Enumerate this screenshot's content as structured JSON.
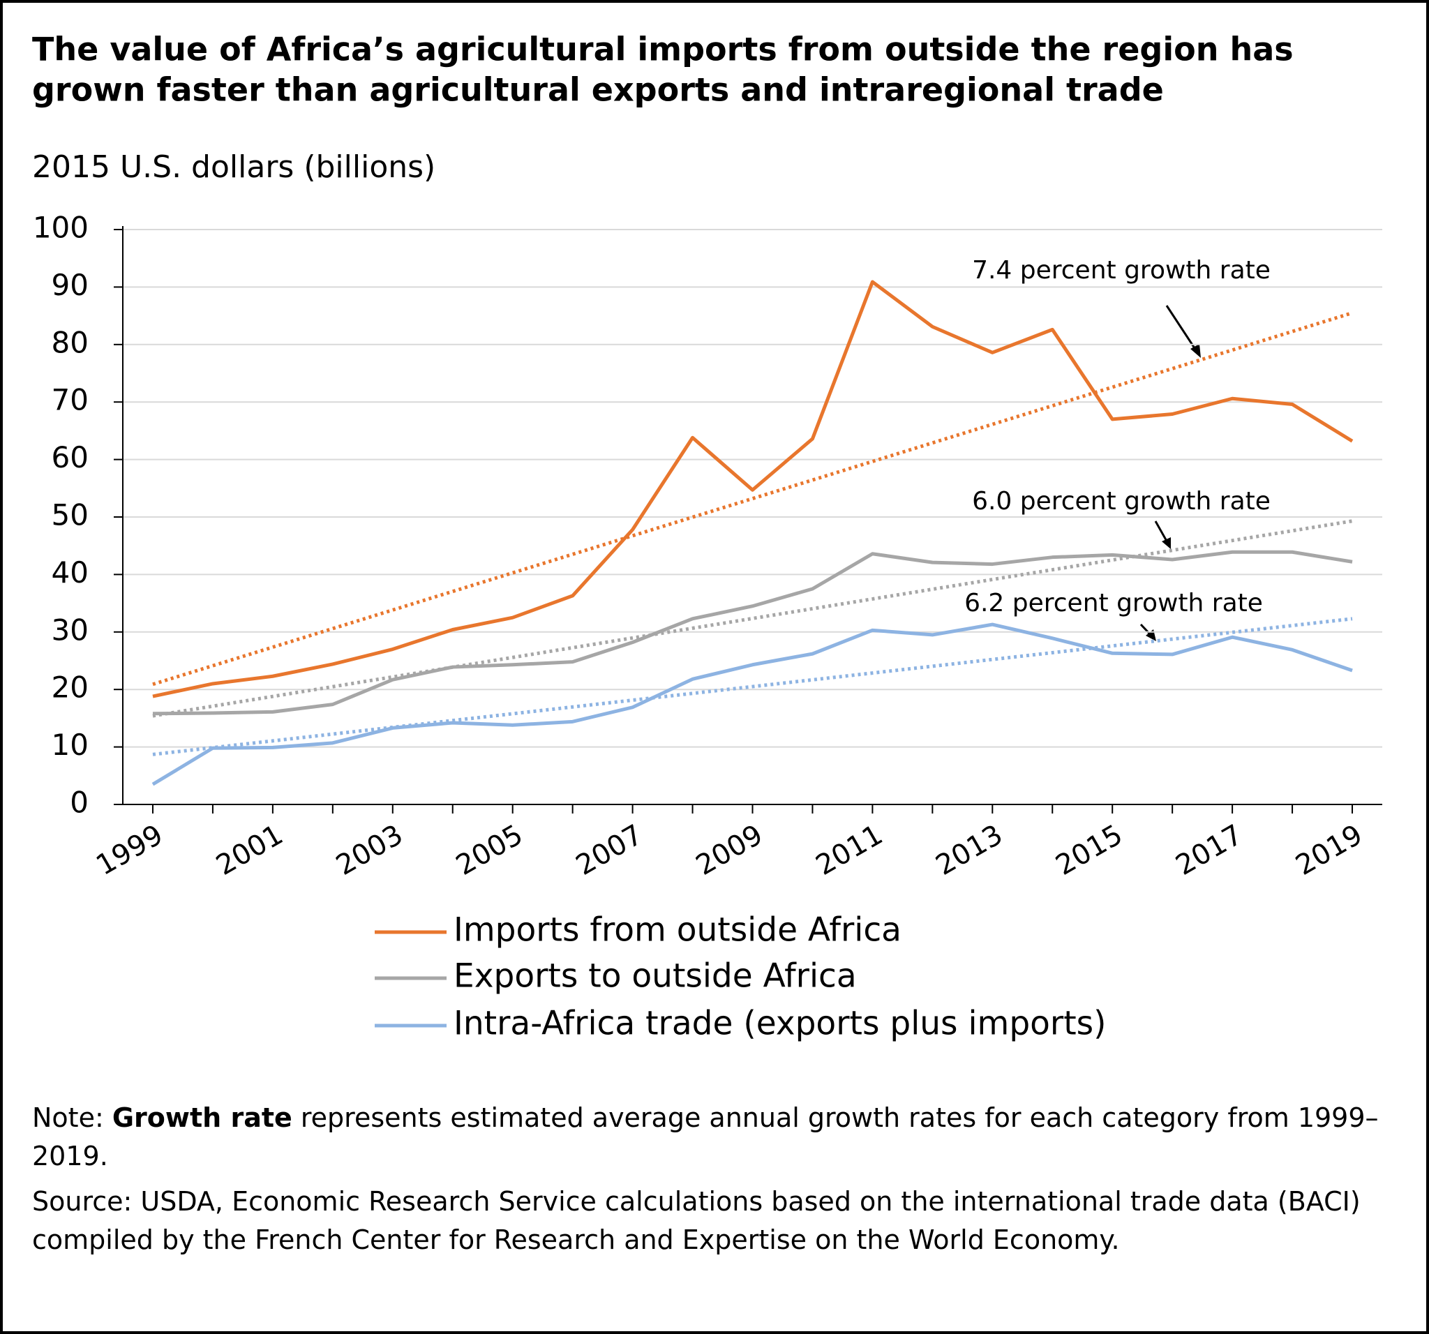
{
  "chart_data": {
    "type": "line",
    "title": [
      "The value of Africa’s agricultural imports from outside the region has",
      "grown faster than agricultural exports and intraregional trade"
    ],
    "y_label": "2015 U.S. dollars (billions)",
    "x": [
      1999,
      2000,
      2001,
      2002,
      2003,
      2004,
      2005,
      2006,
      2007,
      2008,
      2009,
      2010,
      2011,
      2012,
      2013,
      2014,
      2015,
      2016,
      2017,
      2018,
      2019
    ],
    "xlim": [
      1998.5,
      2019.5
    ],
    "xticks": [
      1999,
      2001,
      2003,
      2005,
      2007,
      2009,
      2011,
      2013,
      2015,
      2017,
      2019
    ],
    "ylim": [
      0,
      100
    ],
    "yticks": [
      0,
      10,
      20,
      30,
      40,
      50,
      60,
      70,
      80,
      90,
      100
    ],
    "grid": true,
    "series": [
      {
        "name": "Imports from outside Africa",
        "color": "#e8762d",
        "values": [
          18.8,
          21.0,
          22.3,
          24.4,
          27.0,
          30.4,
          32.5,
          36.3,
          47.8,
          63.8,
          54.7,
          63.6,
          90.9,
          83.1,
          78.6,
          82.6,
          67.0,
          67.9,
          70.6,
          69.6,
          63.2
        ]
      },
      {
        "name": "Exports to outside Africa",
        "color": "#a6a6a6",
        "values": [
          15.8,
          15.9,
          16.1,
          17.4,
          21.7,
          23.9,
          24.3,
          24.8,
          28.2,
          32.3,
          34.5,
          37.5,
          43.6,
          42.1,
          41.8,
          43.0,
          43.4,
          42.6,
          43.9,
          43.9,
          42.2
        ]
      },
      {
        "name": "Intra-Africa trade (exports plus imports)",
        "color": "#8db3e2",
        "values": [
          3.5,
          9.8,
          9.9,
          10.7,
          13.3,
          14.2,
          13.8,
          14.4,
          16.9,
          21.8,
          24.3,
          26.2,
          30.3,
          29.5,
          31.3,
          28.9,
          26.3,
          26.1,
          29.1,
          26.9,
          23.3
        ]
      }
    ],
    "trendlines": [
      {
        "label": "7.4 percent growth rate",
        "color": "#e8762d",
        "x": [
          1999,
          2019
        ],
        "values": [
          20.9,
          85.5
        ]
      },
      {
        "label": "6.0 percent growth rate",
        "color": "#a6a6a6",
        "x": [
          1999,
          2019
        ],
        "values": [
          15.4,
          49.3
        ]
      },
      {
        "label": "6.2 percent growth rate",
        "color": "#8db3e2",
        "x": [
          1999,
          2019
        ],
        "values": [
          8.7,
          32.3
        ]
      }
    ]
  },
  "notes": {
    "note_label": "Note:",
    "note_bold": "Growth rate",
    "note_text": "represents estimated average annual growth rates for each category from 1999–2019.",
    "source": "Source: USDA, Economic Research Service calculations based on the international trade data (BACI) compiled by the French Center for Research and Expertise on the World Economy."
  }
}
